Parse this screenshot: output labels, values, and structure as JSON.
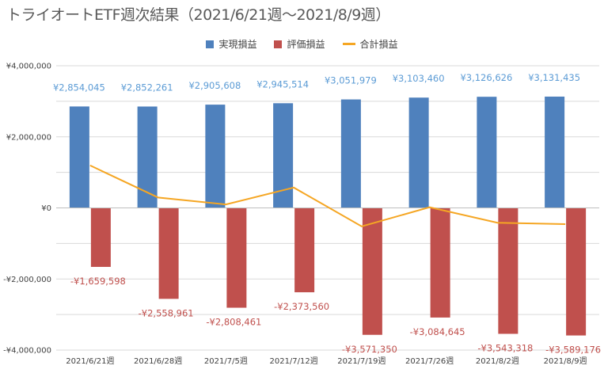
{
  "title": "トライオートETF週次結果（2021/6/21週〜2021/8/9週）",
  "chart_data": {
    "type": "bar",
    "categories": [
      "2021/6/21週",
      "2021/6/28週",
      "2021/7/5週",
      "2021/7/12週",
      "2021/7/19週",
      "2021/7/26週",
      "2021/8/2週",
      "2021/8/9週"
    ],
    "series": [
      {
        "name": "実現損益",
        "type": "bar",
        "color": "#4f81bd",
        "values": [
          2854045,
          2852261,
          2905608,
          2945514,
          3051979,
          3103460,
          3126626,
          3131435
        ],
        "labels": [
          "¥2,854,045",
          "¥2,852,261",
          "¥2,905,608",
          "¥2,945,514",
          "¥3,051,979",
          "¥3,103,460",
          "¥3,126,626",
          "¥3,131,435"
        ]
      },
      {
        "name": "評価損益",
        "type": "bar",
        "color": "#c0504d",
        "values": [
          -1659598,
          -2558961,
          -2808461,
          -2373560,
          -3571350,
          -3084645,
          -3543318,
          -3589176
        ],
        "labels": [
          "-¥1,659,598",
          "-¥2,558,961",
          "-¥2,808,461",
          "-¥2,373,560",
          "-¥3,571,350",
          "-¥3,084,645",
          "-¥3,543,318",
          "-¥3,589,176"
        ]
      },
      {
        "name": "合計損益",
        "type": "line",
        "color": "#f5a623",
        "values": [
          1194447,
          293300,
          97147,
          571954,
          -519371,
          18815,
          -416692,
          -457741
        ]
      }
    ],
    "ylim": [
      -4000000,
      4000000
    ],
    "yticks": [
      {
        "value": 4000000,
        "label": "¥4,000,000"
      },
      {
        "value": 2000000,
        "label": "¥2,000,000"
      },
      {
        "value": 0,
        "label": "¥0"
      },
      {
        "value": -2000000,
        "label": "-¥2,000,000"
      },
      {
        "value": -4000000,
        "label": "-¥4,000,000"
      }
    ],
    "grid": true,
    "legend_position": "top"
  }
}
